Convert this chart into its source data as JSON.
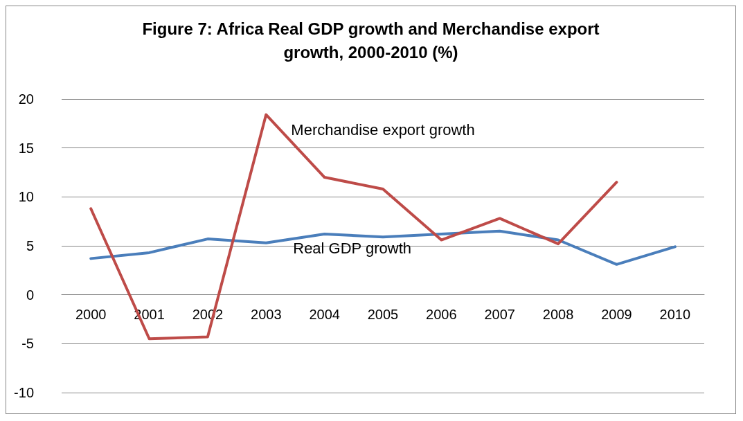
{
  "chart_data": {
    "type": "line",
    "title": "Figure 7: Africa Real GDP growth and Merchandise export\ngrowth, 2000-2010 (%)",
    "categories": [
      "2000",
      "2001",
      "2002",
      "2003",
      "2004",
      "2005",
      "2006",
      "2007",
      "2008",
      "2009",
      "2010"
    ],
    "series": [
      {
        "name": "Real GDP growth",
        "color": "#4a7ebb",
        "values": [
          3.7,
          4.3,
          5.7,
          5.3,
          6.2,
          5.9,
          6.2,
          6.5,
          5.6,
          3.1,
          4.9
        ]
      },
      {
        "name": "Merchandise export growth",
        "color": "#be4b48",
        "values": [
          8.8,
          -4.5,
          -4.3,
          18.4,
          12.0,
          10.8,
          5.6,
          7.8,
          5.2,
          11.5,
          null
        ]
      }
    ],
    "ylim": [
      -10,
      20
    ],
    "yticks": [
      -10,
      -5,
      0,
      5,
      10,
      15,
      20
    ],
    "grid": "y",
    "legend": false,
    "marker": "none",
    "line_style": "solid"
  }
}
